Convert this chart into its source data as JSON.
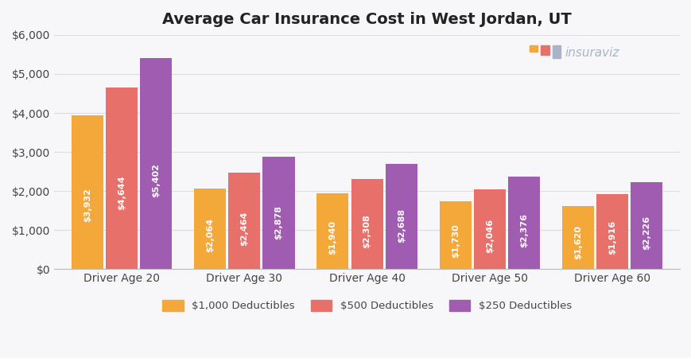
{
  "title": "Average Car Insurance Cost in West Jordan, UT",
  "categories": [
    "Driver Age 20",
    "Driver Age 30",
    "Driver Age 40",
    "Driver Age 50",
    "Driver Age 60"
  ],
  "series": [
    {
      "label": "$1,000 Deductibles",
      "color": "#F5A83A",
      "values": [
        3932,
        2064,
        1940,
        1730,
        1620
      ]
    },
    {
      "label": "$500 Deductibles",
      "color": "#E8706A",
      "values": [
        4644,
        2464,
        2308,
        2046,
        1916
      ]
    },
    {
      "label": "$250 Deductibles",
      "color": "#A05CB0",
      "values": [
        5402,
        2878,
        2688,
        2376,
        2226
      ]
    }
  ],
  "ylim": [
    0,
    6000
  ],
  "yticks": [
    0,
    1000,
    2000,
    3000,
    4000,
    5000,
    6000
  ],
  "ytick_labels": [
    "$0",
    "$1,000",
    "$2,000",
    "$3,000",
    "$4,000",
    "$5,000",
    "$6,000"
  ],
  "background_color": "#F7F7F9",
  "plot_bg_color": "#F7F7F9",
  "grid_color": "#DDDDDD",
  "bar_label_color": "#FFFFFF",
  "bar_label_fontsize": 8.0,
  "title_fontsize": 14,
  "legend_fontsize": 9.5,
  "axis_label_fontsize": 10,
  "watermark_text": "insuraviz",
  "watermark_color_text": "#A8B4C8",
  "watermark_icon_colors": [
    "#F5A83A",
    "#E8706A",
    "#A8B4C8"
  ]
}
